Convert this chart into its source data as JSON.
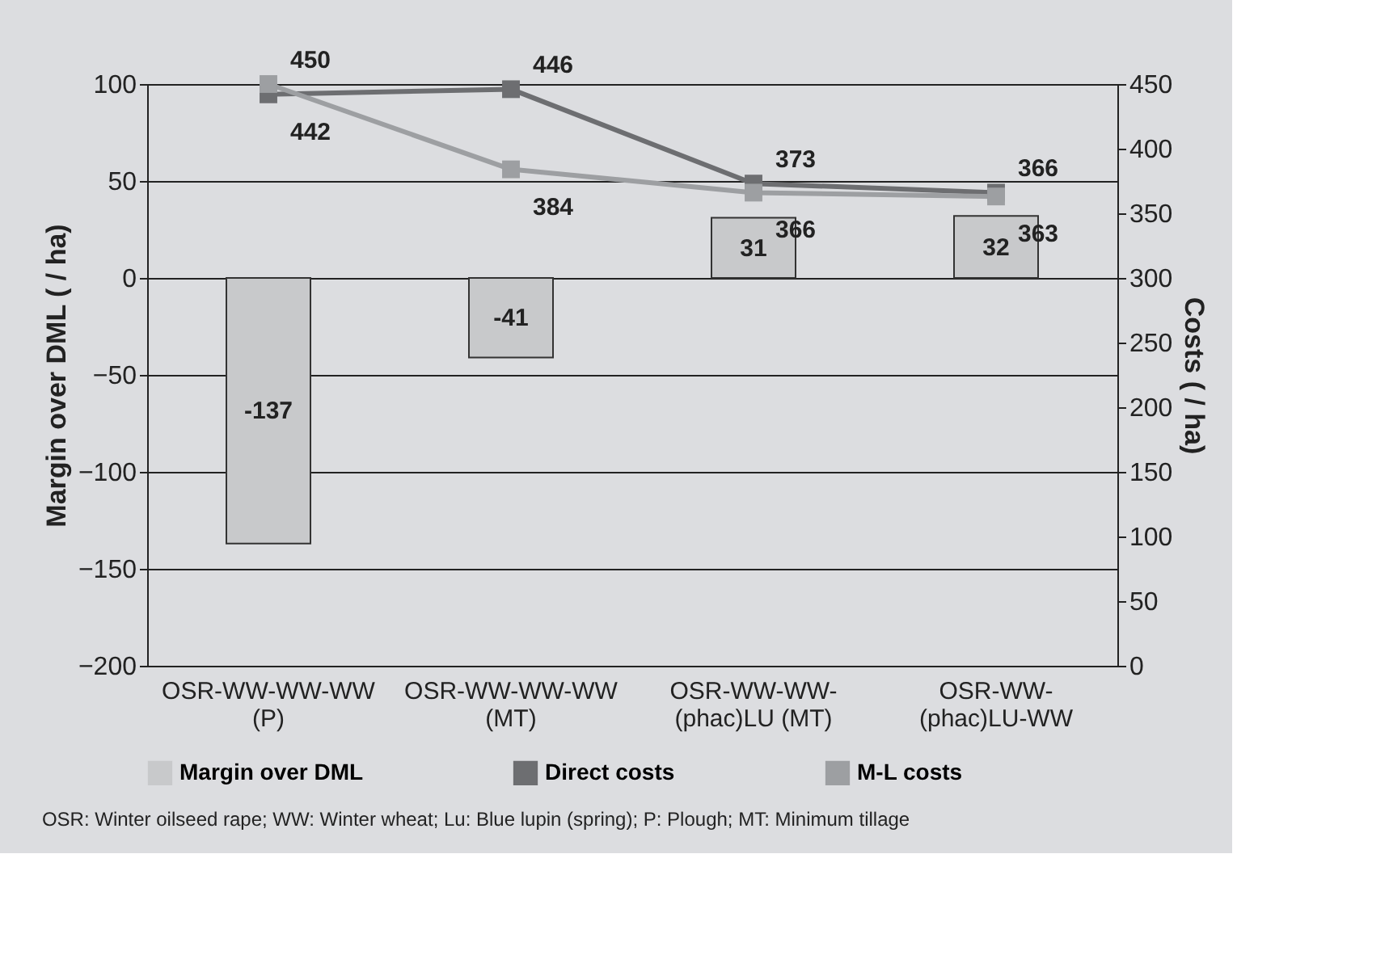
{
  "chart_data": {
    "type": "bar",
    "categories": [
      "OSR-WW-WW-WW (P)",
      "OSR-WW-WW-WW (MT)",
      "OSR-WW-WW-(phac)LU (MT)",
      "OSR-WW-(phac)LU-WW"
    ],
    "series": [
      {
        "name": "Margin over DML",
        "color": "#c8c9cb",
        "values": [
          -137,
          -41,
          31,
          32
        ]
      },
      {
        "name": "Direct costs",
        "type": "line",
        "axis": "y2",
        "color": "#6d6e71",
        "values": [
          442,
          446,
          373,
          366
        ]
      },
      {
        "name": "M-L costs",
        "type": "line",
        "axis": "y2",
        "color": "#9d9fa2",
        "values": [
          450,
          384,
          366,
          363
        ]
      }
    ],
    "ylabel": "Margin over DML ( / ha)",
    "y2label": "Costs ( / ha)",
    "ylim": [
      -200,
      100
    ],
    "yticks": [
      -200,
      -150,
      -100,
      -50,
      0,
      50,
      100
    ],
    "y2lim": [
      0,
      450
    ],
    "y2ticks": [
      0,
      50,
      100,
      150,
      200,
      250,
      300,
      350,
      400,
      450
    ],
    "grid": "y",
    "legend": "bottom",
    "marker": "square",
    "line_style": "solid",
    "data_labels": true,
    "annotations": [
      "OSR: Winter oilseed rape; WW: Winter wheat; Lu: Blue lupin (spring); P: Plough; MT: Minimum tillage"
    ]
  }
}
